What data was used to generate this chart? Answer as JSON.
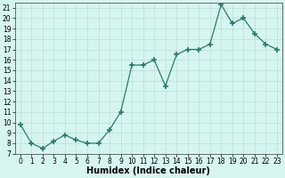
{
  "x": [
    0,
    1,
    2,
    3,
    4,
    5,
    6,
    7,
    8,
    9,
    10,
    11,
    12,
    13,
    14,
    15,
    16,
    17,
    18,
    19,
    20,
    21,
    22,
    23
  ],
  "y": [
    9.8,
    8.0,
    7.5,
    8.2,
    8.8,
    8.3,
    8.0,
    8.0,
    9.3,
    11.0,
    15.5,
    15.5,
    16.0,
    13.5,
    16.5,
    17.0,
    17.0,
    17.5,
    21.3,
    19.5,
    20.0,
    18.5,
    17.5,
    17.0
  ],
  "xlabel": "Humidex (Indice chaleur)",
  "ylim": [
    7,
    21.5
  ],
  "yticks": [
    7,
    8,
    9,
    10,
    11,
    12,
    13,
    14,
    15,
    16,
    17,
    18,
    19,
    20,
    21
  ],
  "xticks": [
    0,
    1,
    2,
    3,
    4,
    5,
    6,
    7,
    8,
    9,
    10,
    11,
    12,
    13,
    14,
    15,
    16,
    17,
    18,
    19,
    20,
    21,
    22,
    23
  ],
  "line_color": "#2a7a6e",
  "marker": "+",
  "marker_size": 4,
  "marker_lw": 1.2,
  "line_width": 0.9,
  "background_color": "#d6f5f0",
  "grid_color": "#b8ddd8",
  "tick_fontsize": 5.5,
  "xlabel_fontsize": 7.0
}
